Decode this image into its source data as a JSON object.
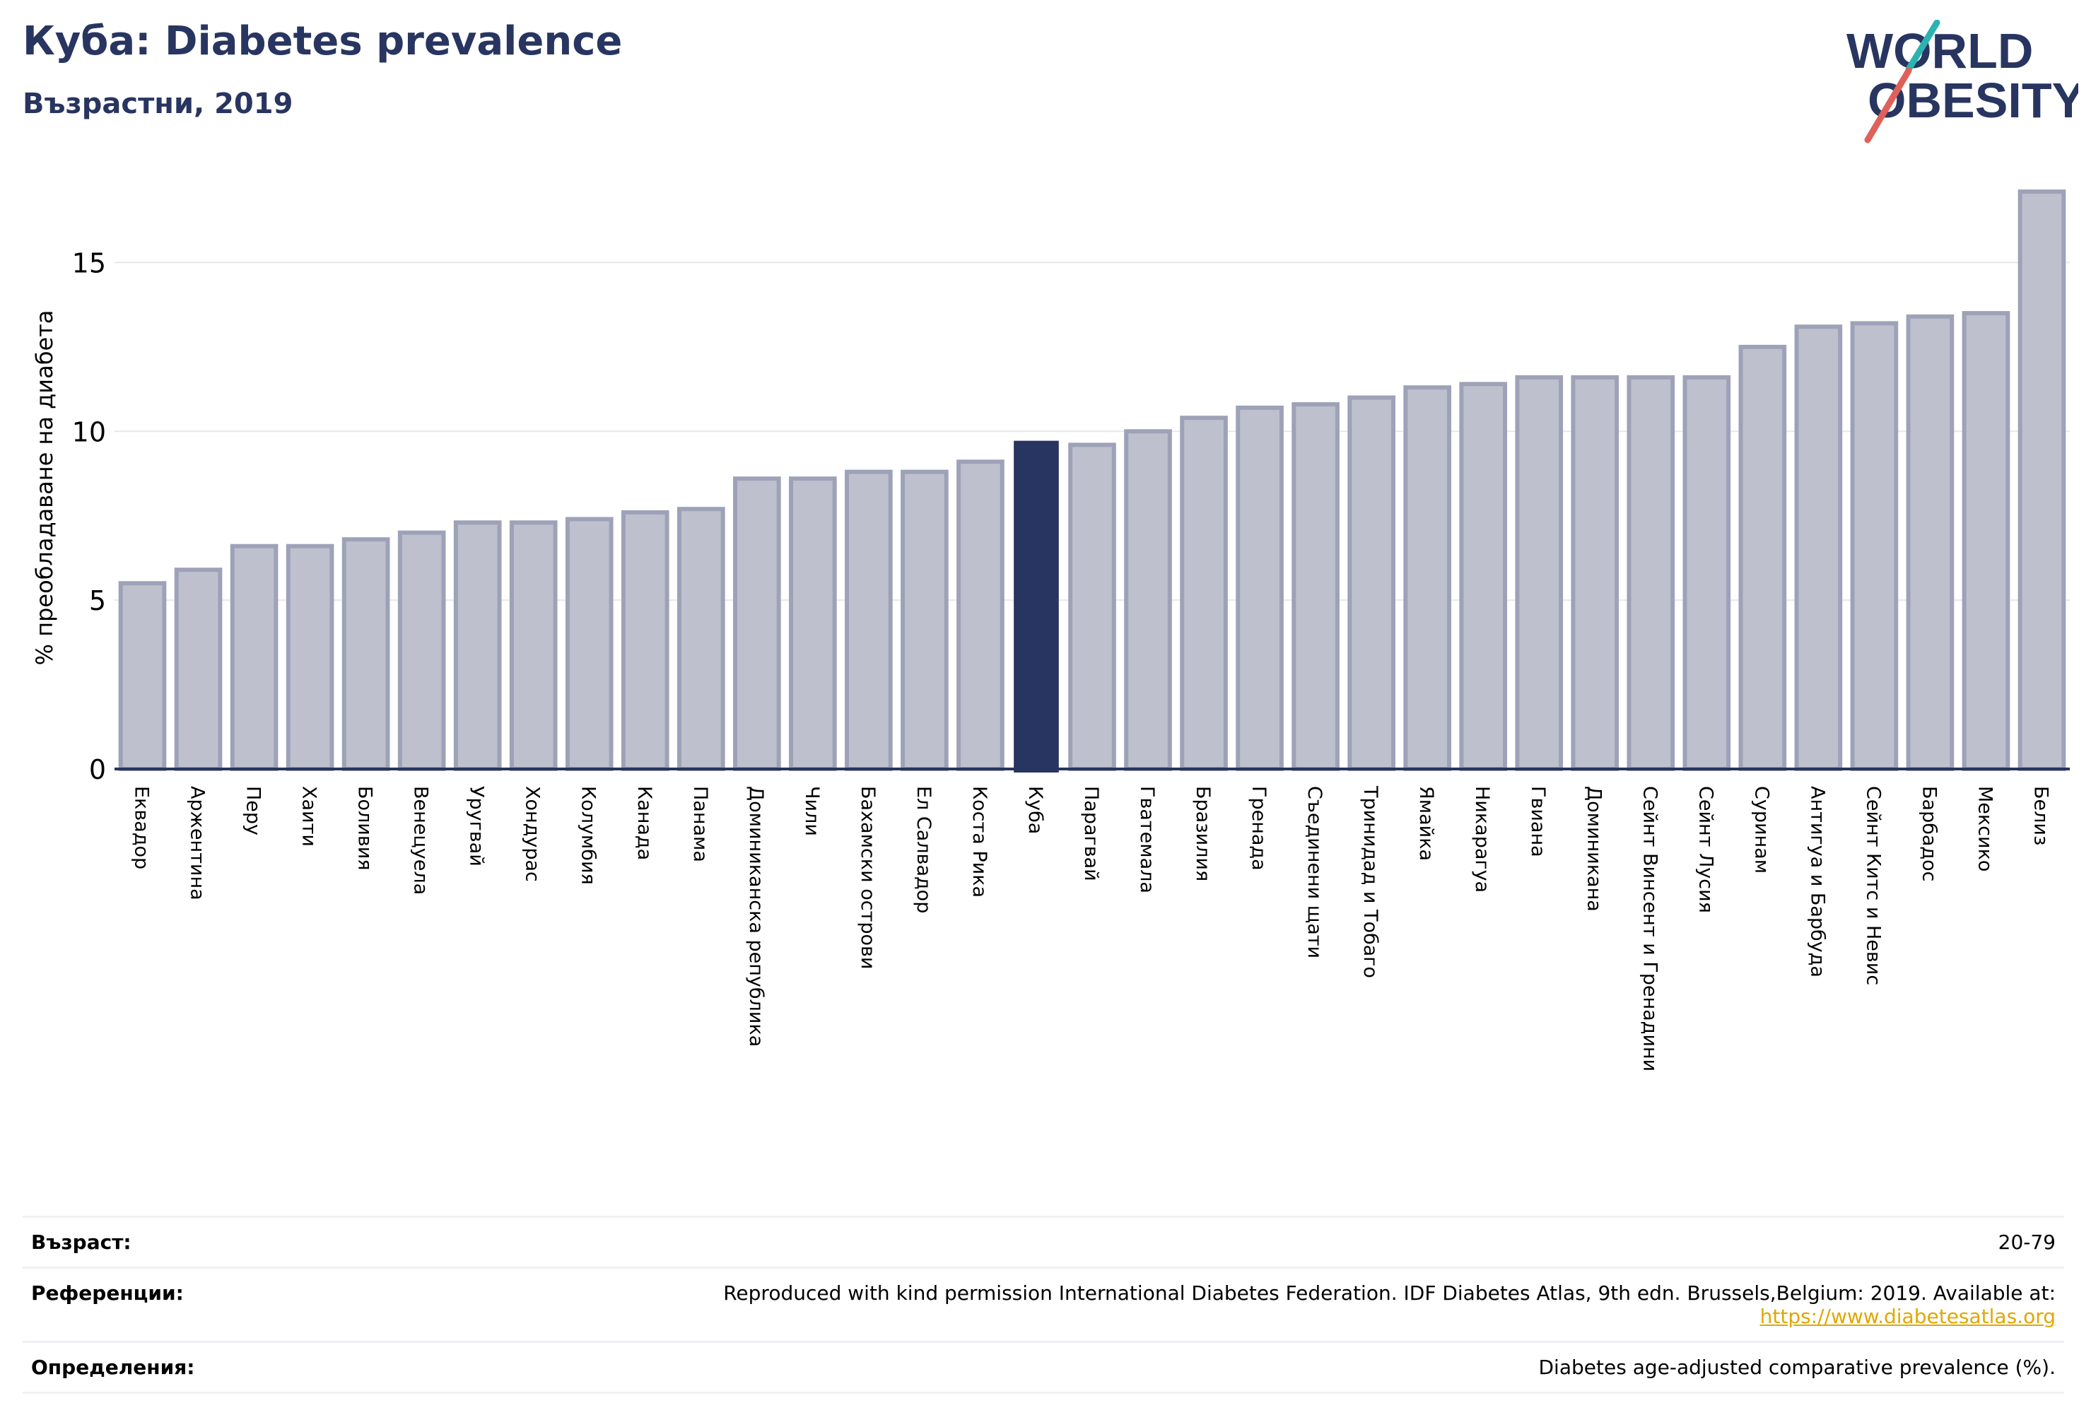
{
  "header": {
    "title": "Куба: Diabetes prevalence",
    "subtitle": "Възрастни, 2019"
  },
  "logo": {
    "line1": "WORLD",
    "line2": "OBESITY",
    "color_text": "#283560",
    "color_accent_teal": "#2bb3b1",
    "color_accent_red": "#e0605a"
  },
  "colors": {
    "bar_default": "#bec1cd",
    "bar_default_edge": "#9ea2b8",
    "bar_highlight": "#283560",
    "axis": "#283560",
    "grid": "#e6e8ee"
  },
  "chart_data": {
    "type": "bar",
    "ylabel": "% преобладаване на диабета",
    "ylim": [
      0,
      17.5
    ],
    "yticks": [
      0,
      5,
      10,
      15
    ],
    "grid": true,
    "highlight": "Куба",
    "categories": [
      "Еквадор",
      "Аржентина",
      "Перу",
      "Хаити",
      "Боливия",
      "Венецуела",
      "Уругвай",
      "Хондурас",
      "Колумбия",
      "Канада",
      "Панама",
      "Доминиканска република",
      "Чили",
      "Бахамски острови",
      "Ел Салвадор",
      "Коста Рика",
      "Куба",
      "Парагвай",
      "Гватемала",
      "Бразилия",
      "Гренада",
      "Съединени щати",
      "Тринидад и Тобаго",
      "Ямайка",
      "Никарагуа",
      "Гвиана",
      "Доминикана",
      "Сейнт Винсент и Гренадини",
      "Сейнт Лусия",
      "Суринам",
      "Антигуа и Барбуда",
      "Сейнт Китс и Невис",
      "Барбадос",
      "Мексико",
      "Белиз"
    ],
    "values": [
      5.5,
      5.9,
      6.6,
      6.6,
      6.8,
      7.0,
      7.3,
      7.3,
      7.4,
      7.6,
      7.7,
      8.6,
      8.6,
      8.8,
      8.8,
      9.1,
      9.7,
      9.6,
      10.0,
      10.4,
      10.7,
      10.8,
      11.0,
      11.3,
      11.4,
      11.6,
      11.6,
      11.6,
      11.6,
      12.5,
      13.1,
      13.2,
      13.4,
      13.5,
      17.1
    ]
  },
  "footer": {
    "age_label": "Възраст:",
    "age_value": "20-79",
    "ref_label": "Референции:",
    "ref_text": "Reproduced with kind permission International Diabetes Federation. IDF Diabetes Atlas, 9th edn. Brussels,Belgium: 2019. Available at:",
    "ref_link": "https://www.diabetesatlas.org",
    "def_label": "Определения:",
    "def_text": "Diabetes age-adjusted comparative prevalence (%)."
  }
}
